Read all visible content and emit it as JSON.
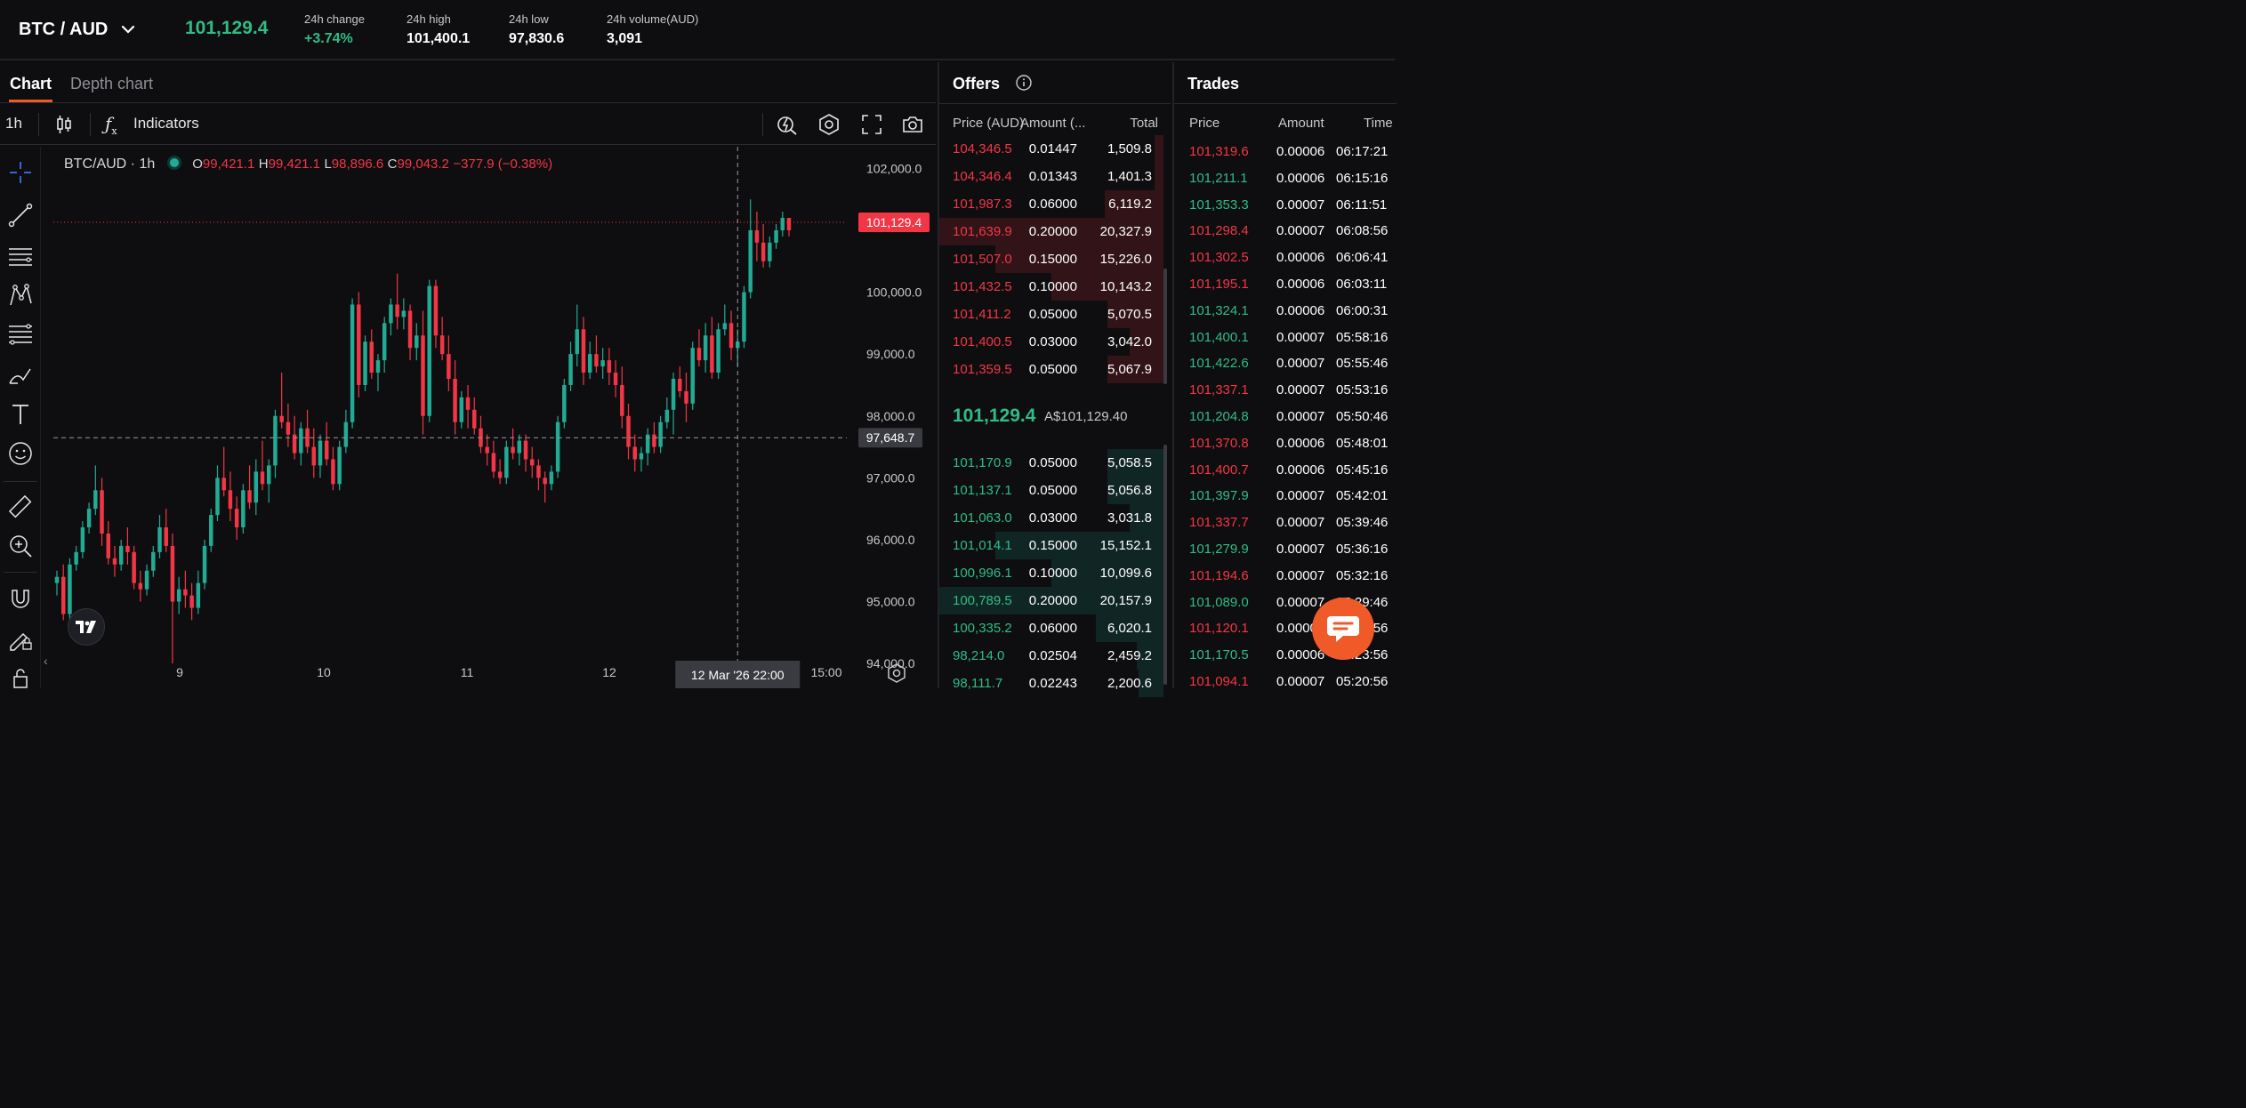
{
  "header": {
    "pair": "BTC / AUD",
    "last_price": "101,129.4",
    "stats": [
      {
        "label": "24h change",
        "value": "+3.74%",
        "tone": "green"
      },
      {
        "label": "24h high",
        "value": "101,400.1",
        "tone": "white"
      },
      {
        "label": "24h low",
        "value": "97,830.6",
        "tone": "white"
      },
      {
        "label": "24h volume(AUD)",
        "value": "3,091",
        "tone": "white"
      }
    ]
  },
  "tabs": {
    "chart": "Chart",
    "depth": "Depth chart"
  },
  "toolbar": {
    "interval": "1h",
    "indicators": "Indicators"
  },
  "legend": {
    "symbol": "BTC/AUD · 1h",
    "o_label": "O",
    "o": "99,421.1",
    "h_label": "H",
    "h": "99,421.1",
    "l_label": "L",
    "l": "98,896.6",
    "c_label": "C",
    "c": "99,043.2",
    "change": "−377.9 (−0.38%)"
  },
  "chart_data": {
    "type": "candlestick",
    "title": "",
    "y_ticks": [
      "102,000.0",
      "100,000.0",
      "99,000.0",
      "98,000.0",
      "97,000.0",
      "96,000.0",
      "95,000.0",
      "94,000.0"
    ],
    "y_tick_values": [
      102000,
      100000,
      99000,
      98000,
      97000,
      96000,
      95000,
      94000
    ],
    "ylim": [
      93600,
      102350
    ],
    "x_ticks": [
      "9",
      "10",
      "11",
      "12",
      "15:00"
    ],
    "last_price_label": "101,129.4",
    "last_price_value": 101129.4,
    "crosshair_price_label": "97,648.7",
    "crosshair_price_value": 97648.7,
    "crosshair_time_label": "12 Mar '26   22:00",
    "ohlc": [
      [
        95300,
        95500,
        95100,
        95400
      ],
      [
        95400,
        95600,
        94700,
        94800
      ],
      [
        94800,
        95700,
        94700,
        95600
      ],
      [
        95600,
        95900,
        95500,
        95800
      ],
      [
        95800,
        96300,
        95700,
        96200
      ],
      [
        96200,
        96600,
        96100,
        96500
      ],
      [
        96500,
        97200,
        96400,
        96800
      ],
      [
        96800,
        97000,
        95900,
        96100
      ],
      [
        96100,
        96300,
        95600,
        95700
      ],
      [
        95700,
        95900,
        95400,
        95600
      ],
      [
        95600,
        96000,
        95500,
        95900
      ],
      [
        95900,
        96200,
        95600,
        95800
      ],
      [
        95800,
        95900,
        95200,
        95300
      ],
      [
        95300,
        95500,
        95000,
        95200
      ],
      [
        95200,
        95600,
        95100,
        95500
      ],
      [
        95500,
        95900,
        95400,
        95800
      ],
      [
        95800,
        96400,
        95700,
        96200
      ],
      [
        96200,
        96500,
        95800,
        95900
      ],
      [
        95900,
        96100,
        94000,
        95000
      ],
      [
        95000,
        95400,
        94800,
        95200
      ],
      [
        95200,
        95500,
        94900,
        95100
      ],
      [
        95100,
        95300,
        94700,
        94900
      ],
      [
        94900,
        95500,
        94800,
        95300
      ],
      [
        95300,
        96000,
        95200,
        95900
      ],
      [
        95900,
        96500,
        95800,
        96400
      ],
      [
        96400,
        97200,
        96300,
        97000
      ],
      [
        97000,
        97500,
        96700,
        96800
      ],
      [
        96800,
        97100,
        96300,
        96500
      ],
      [
        96500,
        96700,
        96000,
        96200
      ],
      [
        96200,
        96900,
        96100,
        96800
      ],
      [
        96800,
        97200,
        96500,
        96600
      ],
      [
        96600,
        97300,
        96400,
        97100
      ],
      [
        97100,
        97600,
        96800,
        96900
      ],
      [
        96900,
        97300,
        96600,
        97200
      ],
      [
        97200,
        98100,
        97000,
        98000
      ],
      [
        98000,
        98700,
        97800,
        97900
      ],
      [
        97900,
        98200,
        97500,
        97700
      ],
      [
        97700,
        98000,
        97300,
        97400
      ],
      [
        97400,
        97900,
        97200,
        97800
      ],
      [
        97800,
        98100,
        97400,
        97500
      ],
      [
        97500,
        97800,
        97000,
        97200
      ],
      [
        97200,
        97700,
        97000,
        97600
      ],
      [
        97600,
        97900,
        97200,
        97300
      ],
      [
        97300,
        97500,
        96800,
        96900
      ],
      [
        96900,
        97600,
        96800,
        97500
      ],
      [
        97500,
        98100,
        97400,
        97900
      ],
      [
        97900,
        99900,
        97800,
        99800
      ],
      [
        99800,
        100000,
        98300,
        98500
      ],
      [
        98500,
        99300,
        98400,
        99200
      ],
      [
        99200,
        99400,
        98600,
        98700
      ],
      [
        98700,
        99000,
        98400,
        98900
      ],
      [
        98900,
        99600,
        98700,
        99500
      ],
      [
        99500,
        99900,
        99300,
        99800
      ],
      [
        99800,
        100300,
        99400,
        99600
      ],
      [
        99600,
        99900,
        99400,
        99700
      ],
      [
        99700,
        99800,
        98900,
        99100
      ],
      [
        99100,
        99500,
        98900,
        99300
      ],
      [
        99300,
        99700,
        97700,
        98000
      ],
      [
        98000,
        100200,
        97900,
        100100
      ],
      [
        100100,
        100200,
        99100,
        99300
      ],
      [
        99300,
        99600,
        98900,
        99000
      ],
      [
        99000,
        99300,
        98400,
        98600
      ],
      [
        98600,
        98900,
        97700,
        97900
      ],
      [
        97900,
        98400,
        97800,
        98300
      ],
      [
        98300,
        98500,
        97800,
        98100
      ],
      [
        98100,
        98300,
        97700,
        97800
      ],
      [
        97800,
        98000,
        97400,
        97500
      ],
      [
        97500,
        97700,
        97200,
        97400
      ],
      [
        97400,
        97600,
        97000,
        97100
      ],
      [
        97100,
        97300,
        96900,
        97000
      ],
      [
        97000,
        97600,
        96900,
        97500
      ],
      [
        97500,
        97800,
        97300,
        97400
      ],
      [
        97400,
        97700,
        97200,
        97600
      ],
      [
        97600,
        97700,
        97100,
        97300
      ],
      [
        97300,
        97500,
        97000,
        97200
      ],
      [
        97200,
        97300,
        96800,
        97000
      ],
      [
        97000,
        97100,
        96600,
        96900
      ],
      [
        96900,
        97200,
        96800,
        97100
      ],
      [
        97100,
        98000,
        97000,
        97900
      ],
      [
        97900,
        98600,
        97800,
        98500
      ],
      [
        98500,
        99200,
        98400,
        99000
      ],
      [
        99000,
        99800,
        98800,
        99400
      ],
      [
        99400,
        99600,
        98500,
        98700
      ],
      [
        98700,
        99200,
        98600,
        99000
      ],
      [
        99000,
        99300,
        98700,
        98800
      ],
      [
        98800,
        99100,
        98600,
        98900
      ],
      [
        98900,
        99100,
        98500,
        98700
      ],
      [
        98700,
        98900,
        98300,
        98500
      ],
      [
        98500,
        98800,
        97800,
        98000
      ],
      [
        98000,
        98200,
        97300,
        97500
      ],
      [
        97500,
        97700,
        97100,
        97300
      ],
      [
        97300,
        97500,
        97100,
        97400
      ],
      [
        97400,
        97800,
        97200,
        97700
      ],
      [
        97700,
        97900,
        97400,
        97500
      ],
      [
        97500,
        98000,
        97400,
        97900
      ],
      [
        97900,
        98300,
        97800,
        98100
      ],
      [
        98100,
        98700,
        97700,
        98600
      ],
      [
        98600,
        98800,
        98300,
        98400
      ],
      [
        98400,
        98700,
        97900,
        98200
      ],
      [
        98200,
        99200,
        98100,
        99100
      ],
      [
        99100,
        99400,
        98800,
        98900
      ],
      [
        98900,
        99500,
        98700,
        99300
      ],
      [
        99300,
        99600,
        98600,
        98700
      ],
      [
        98700,
        99500,
        98600,
        99400
      ],
      [
        99400,
        99800,
        99300,
        99500
      ],
      [
        99500,
        99700,
        98900,
        99100
      ],
      [
        99100,
        99400,
        98800,
        99200
      ],
      [
        99200,
        100100,
        99100,
        100000
      ],
      [
        100000,
        101500,
        99900,
        101000
      ],
      [
        101000,
        101300,
        100500,
        100800
      ],
      [
        100800,
        101100,
        100400,
        100500
      ],
      [
        100500,
        100900,
        100400,
        100800
      ],
      [
        100800,
        101100,
        100700,
        101000
      ],
      [
        101000,
        101300,
        100900,
        101200
      ],
      [
        101200,
        101200,
        100900,
        101000
      ]
    ]
  },
  "offers": {
    "title": "Offers",
    "headers": {
      "price": "Price (AUD)",
      "amount": "Amount (...",
      "total": "Total"
    },
    "asks": [
      {
        "price": "104,346.5",
        "amount": "0.01447",
        "total": "1,509.8",
        "depth": 0.04
      },
      {
        "price": "104,346.4",
        "amount": "0.01343",
        "total": "1,401.3",
        "depth": 0.04
      },
      {
        "price": "101,987.3",
        "amount": "0.06000",
        "total": "6,119.2",
        "depth": 0.26
      },
      {
        "price": "101,639.9",
        "amount": "0.20000",
        "total": "20,327.9",
        "depth": 1.0
      },
      {
        "price": "101,507.0",
        "amount": "0.15000",
        "total": "15,226.0",
        "depth": 0.75
      },
      {
        "price": "101,432.5",
        "amount": "0.10000",
        "total": "10,143.2",
        "depth": 0.5
      },
      {
        "price": "101,411.2",
        "amount": "0.05000",
        "total": "5,070.5",
        "depth": 0.25
      },
      {
        "price": "101,400.5",
        "amount": "0.03000",
        "total": "3,042.0",
        "depth": 0.15
      },
      {
        "price": "101,359.5",
        "amount": "0.05000",
        "total": "5,067.9",
        "depth": 0.25
      }
    ],
    "mid_price": "101,129.4",
    "mid_aud": "A$101,129.40",
    "bids": [
      {
        "price": "101,170.9",
        "amount": "0.05000",
        "total": "5,058.5",
        "depth": 0.25
      },
      {
        "price": "101,137.1",
        "amount": "0.05000",
        "total": "5,056.8",
        "depth": 0.25
      },
      {
        "price": "101,063.0",
        "amount": "0.03000",
        "total": "3,031.8",
        "depth": 0.15
      },
      {
        "price": "101,014.1",
        "amount": "0.15000",
        "total": "15,152.1",
        "depth": 0.75
      },
      {
        "price": "100,996.1",
        "amount": "0.10000",
        "total": "10,099.6",
        "depth": 0.5
      },
      {
        "price": "100,789.5",
        "amount": "0.20000",
        "total": "20,157.9",
        "depth": 1.0
      },
      {
        "price": "100,335.2",
        "amount": "0.06000",
        "total": "6,020.1",
        "depth": 0.3
      },
      {
        "price": "98,214.0",
        "amount": "0.02504",
        "total": "2,459.2",
        "depth": 0.12
      },
      {
        "price": "98,111.7",
        "amount": "0.02243",
        "total": "2,200.6",
        "depth": 0.11
      }
    ]
  },
  "trades": {
    "title": "Trades",
    "headers": {
      "price": "Price",
      "amount": "Amount",
      "time": "Time"
    },
    "rows": [
      {
        "price": "101,319.6",
        "amount": "0.00006",
        "time": "06:17:21",
        "side": "sell"
      },
      {
        "price": "101,211.1",
        "amount": "0.00006",
        "time": "06:15:16",
        "side": "buy"
      },
      {
        "price": "101,353.3",
        "amount": "0.00007",
        "time": "06:11:51",
        "side": "buy"
      },
      {
        "price": "101,298.4",
        "amount": "0.00007",
        "time": "06:08:56",
        "side": "sell"
      },
      {
        "price": "101,302.5",
        "amount": "0.00006",
        "time": "06:06:41",
        "side": "sell"
      },
      {
        "price": "101,195.1",
        "amount": "0.00006",
        "time": "06:03:11",
        "side": "sell"
      },
      {
        "price": "101,324.1",
        "amount": "0.00006",
        "time": "06:00:31",
        "side": "buy"
      },
      {
        "price": "101,400.1",
        "amount": "0.00007",
        "time": "05:58:16",
        "side": "buy"
      },
      {
        "price": "101,422.6",
        "amount": "0.00007",
        "time": "05:55:46",
        "side": "buy"
      },
      {
        "price": "101,337.1",
        "amount": "0.00007",
        "time": "05:53:16",
        "side": "sell"
      },
      {
        "price": "101,204.8",
        "amount": "0.00007",
        "time": "05:50:46",
        "side": "buy"
      },
      {
        "price": "101,370.8",
        "amount": "0.00006",
        "time": "05:48:01",
        "side": "sell"
      },
      {
        "price": "101,400.7",
        "amount": "0.00006",
        "time": "05:45:16",
        "side": "sell"
      },
      {
        "price": "101,397.9",
        "amount": "0.00007",
        "time": "05:42:01",
        "side": "buy"
      },
      {
        "price": "101,337.7",
        "amount": "0.00007",
        "time": "05:39:46",
        "side": "sell"
      },
      {
        "price": "101,279.9",
        "amount": "0.00007",
        "time": "05:36:16",
        "side": "buy"
      },
      {
        "price": "101,194.6",
        "amount": "0.00007",
        "time": "05:32:16",
        "side": "sell"
      },
      {
        "price": "101,089.0",
        "amount": "0.00007",
        "time": "05:29:46",
        "side": "buy"
      },
      {
        "price": "101,120.1",
        "amount": "0.00006",
        "time": "05:26:56",
        "side": "sell"
      },
      {
        "price": "101,170.5",
        "amount": "0.00006",
        "time": "05:23:56",
        "side": "buy"
      },
      {
        "price": "101,094.1",
        "amount": "0.00007",
        "time": "05:20:56",
        "side": "sell"
      }
    ]
  },
  "colors": {
    "up": "#22ab94",
    "down": "#f23645",
    "accent": "#f05a28"
  }
}
